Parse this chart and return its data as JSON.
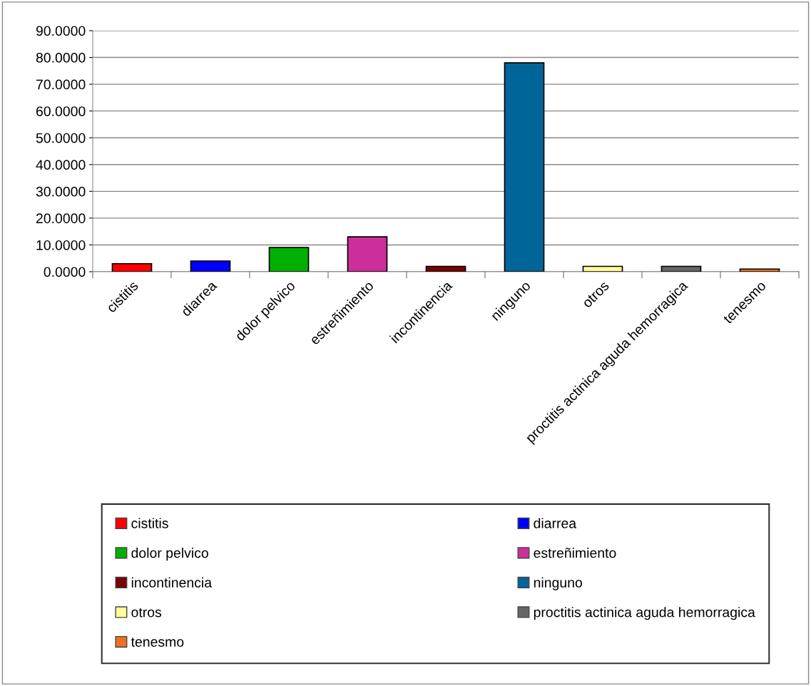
{
  "chart_data": {
    "type": "bar",
    "categories": [
      "cistitis",
      "diarrea",
      "dolor pelvico",
      "estreñimiento",
      "incontinencia",
      "ninguno",
      "otros",
      "proctitis actinica aguda hemorragica",
      "tenesmo"
    ],
    "series": [
      {
        "name": "cistitis",
        "color": "#ff0000",
        "values": [
          3,
          null,
          null,
          null,
          null,
          null,
          null,
          null,
          null
        ]
      },
      {
        "name": "diarrea",
        "color": "#0000ff",
        "values": [
          null,
          4,
          null,
          null,
          null,
          null,
          null,
          null,
          null
        ]
      },
      {
        "name": "dolor pelvico",
        "color": "#00b000",
        "values": [
          null,
          null,
          9,
          null,
          null,
          null,
          null,
          null,
          null
        ]
      },
      {
        "name": "estreñimiento",
        "color": "#cc2e9a",
        "values": [
          null,
          null,
          null,
          13,
          null,
          null,
          null,
          null,
          null
        ]
      },
      {
        "name": "incontinencia",
        "color": "#7a0000",
        "values": [
          null,
          null,
          null,
          null,
          2,
          null,
          null,
          null,
          null
        ]
      },
      {
        "name": "ninguno",
        "color": "#006699",
        "values": [
          null,
          null,
          null,
          null,
          null,
          78,
          null,
          null,
          null
        ]
      },
      {
        "name": "otros",
        "color": "#ffff99",
        "values": [
          null,
          null,
          null,
          null,
          null,
          null,
          2,
          null,
          null
        ]
      },
      {
        "name": "proctitis actinica aguda hemorragica",
        "color": "#666666",
        "values": [
          null,
          null,
          null,
          null,
          null,
          null,
          null,
          2,
          null
        ]
      },
      {
        "name": "tenesmo",
        "color": "#f07020",
        "values": [
          null,
          null,
          null,
          null,
          null,
          null,
          null,
          null,
          1
        ]
      }
    ],
    "ylim": [
      0,
      90
    ],
    "yticks": [
      {
        "value": 0,
        "label": "0.0000"
      },
      {
        "value": 10,
        "label": "10.0000"
      },
      {
        "value": 20,
        "label": "20.0000"
      },
      {
        "value": 30,
        "label": "30.0000"
      },
      {
        "value": 40,
        "label": "40.0000"
      },
      {
        "value": 50,
        "label": "50.0000"
      },
      {
        "value": 60,
        "label": "60.0000"
      },
      {
        "value": 70,
        "label": "70.0000"
      },
      {
        "value": 80,
        "label": "80.0000"
      },
      {
        "value": 90,
        "label": "90.0000"
      }
    ],
    "grid": "y",
    "legend": "bottom"
  }
}
